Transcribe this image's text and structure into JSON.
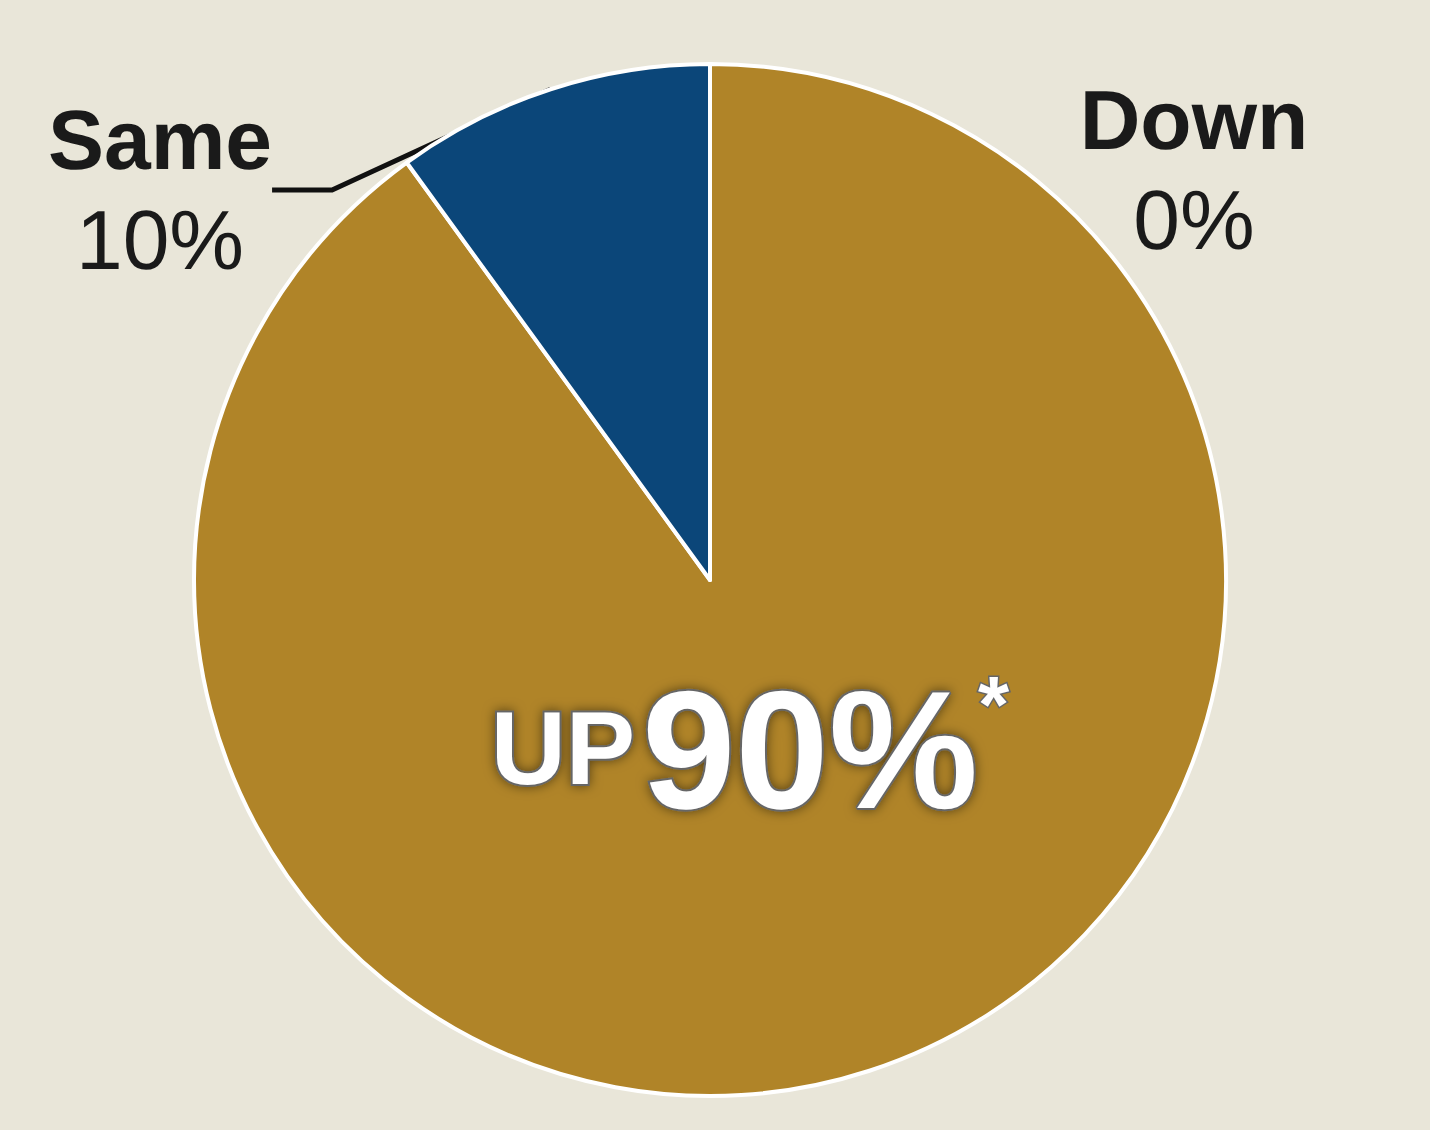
{
  "chart_data": {
    "type": "pie",
    "categories": [
      "UP",
      "Same",
      "Down"
    ],
    "values": [
      90,
      10,
      0
    ],
    "colors": [
      "#b08428",
      "#0b4679",
      "#7a7a7a"
    ],
    "value_labels": [
      "90%$^{*}$",
      "10%",
      "0%"
    ],
    "legend": false
  }
}
